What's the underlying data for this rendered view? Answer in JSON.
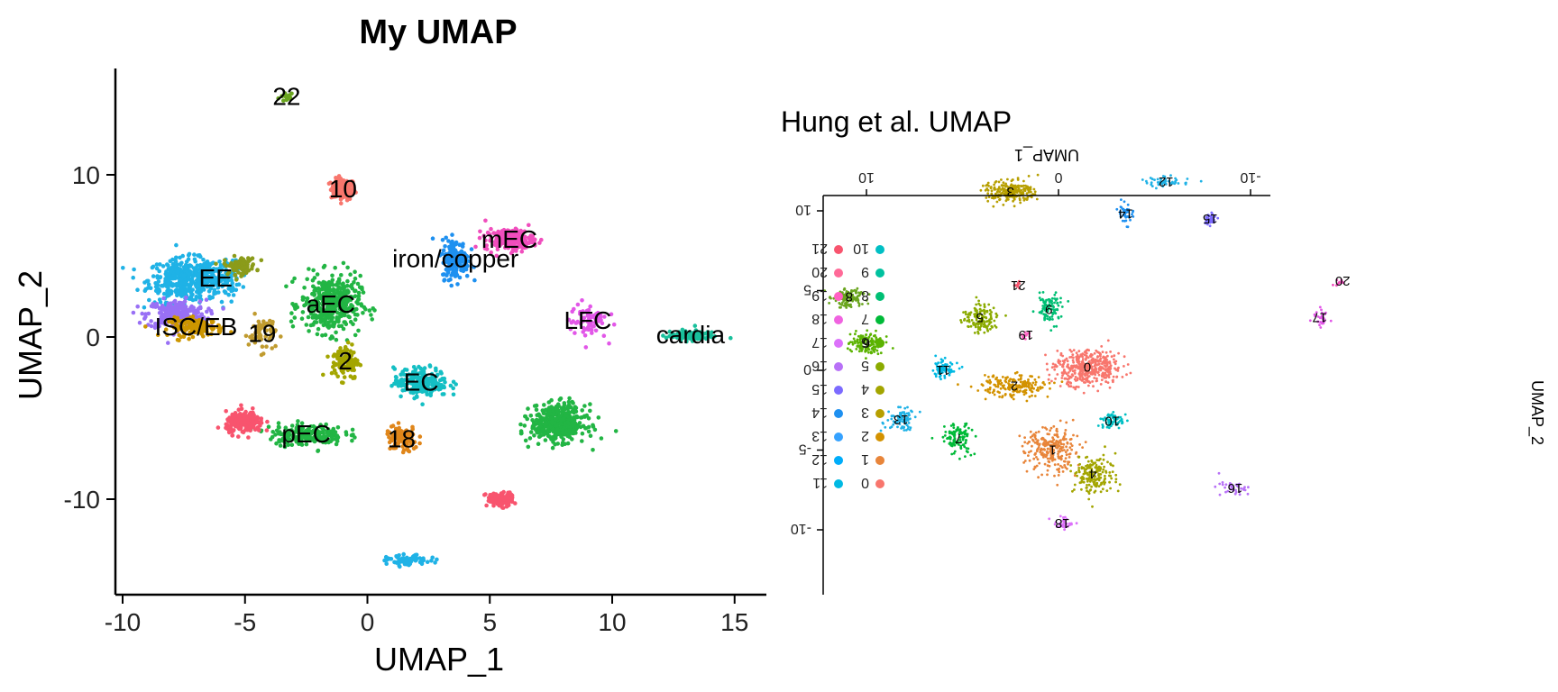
{
  "chart_data": [
    {
      "type": "scatter",
      "title": "My UMAP",
      "xlabel": "UMAP_1",
      "ylabel": "UMAP_2",
      "xlim": [
        -10.3,
        16.2
      ],
      "ylim": [
        -16,
        16.5
      ],
      "xticks": [
        -10,
        -5,
        0,
        5,
        10,
        15
      ],
      "yticks": [
        -10,
        0,
        10
      ],
      "grid": false,
      "legend": "none",
      "clusters": [
        {
          "label": "22",
          "x": -3.3,
          "y": 14.8,
          "sx": 0.3,
          "sy": 0.3,
          "n": 15,
          "color": "#6aa51f"
        },
        {
          "label": "10",
          "x": -1.0,
          "y": 9.1,
          "sx": 0.45,
          "sy": 0.6,
          "n": 110,
          "color": "#f8766d"
        },
        {
          "label": "",
          "x": -7.5,
          "y": 3.5,
          "sx": 1.3,
          "sy": 1.2,
          "n": 380,
          "color": "#1fb2e6"
        },
        {
          "label": "",
          "x": -7.8,
          "y": 1.4,
          "sx": 1.1,
          "sy": 0.8,
          "n": 260,
          "color": "#9970f5"
        },
        {
          "label": "EE",
          "x": -6.2,
          "y": 3.6,
          "sx": 0.9,
          "sy": 1.0,
          "n": 160,
          "color": "#1fb2e6"
        },
        {
          "label": "",
          "x": -5.2,
          "y": 4.4,
          "sx": 0.6,
          "sy": 0.5,
          "n": 80,
          "color": "#8b9b1a"
        },
        {
          "label": "ISC/EB",
          "x": -7.0,
          "y": 0.6,
          "sx": 1.0,
          "sy": 0.5,
          "n": 140,
          "color": "#cd9600"
        },
        {
          "label": "19",
          "x": -4.3,
          "y": 0.2,
          "sx": 0.5,
          "sy": 1.0,
          "n": 60,
          "color": "#c09b2f"
        },
        {
          "label": "aEC",
          "x": -1.5,
          "y": 2.0,
          "sx": 1.1,
          "sy": 1.6,
          "n": 420,
          "color": "#22b544"
        },
        {
          "label": "2",
          "x": -0.9,
          "y": -1.5,
          "sx": 0.5,
          "sy": 1.0,
          "n": 110,
          "color": "#a3a500"
        },
        {
          "label": "iron/copper",
          "x": 3.6,
          "y": 4.8,
          "sx": 0.5,
          "sy": 1.1,
          "n": 180,
          "color": "#1e90f0"
        },
        {
          "label": "mEC",
          "x": 5.8,
          "y": 6.0,
          "sx": 0.9,
          "sy": 0.6,
          "n": 210,
          "color": "#f04ebd"
        },
        {
          "label": "LFC",
          "x": 9.0,
          "y": 1.0,
          "sx": 0.7,
          "sy": 1.0,
          "n": 70,
          "color": "#e257e8"
        },
        {
          "label": "cardia",
          "x": 13.2,
          "y": 0.1,
          "sx": 0.9,
          "sy": 0.3,
          "n": 90,
          "color": "#19c09c"
        },
        {
          "label": "EC",
          "x": 2.2,
          "y": -2.8,
          "sx": 1.0,
          "sy": 0.8,
          "n": 200,
          "color": "#14bfc4"
        },
        {
          "label": "pEC",
          "x": -2.5,
          "y": -6.0,
          "sx": 1.4,
          "sy": 0.6,
          "n": 200,
          "color": "#22b544"
        },
        {
          "label": "",
          "x": -5.0,
          "y": -5.3,
          "sx": 0.7,
          "sy": 0.6,
          "n": 180,
          "color": "#f8546e"
        },
        {
          "label": "18",
          "x": 1.4,
          "y": -6.3,
          "sx": 0.6,
          "sy": 0.7,
          "n": 110,
          "color": "#e0861a"
        },
        {
          "label": "",
          "x": 7.8,
          "y": -5.3,
          "sx": 1.0,
          "sy": 1.0,
          "n": 450,
          "color": "#22b544"
        },
        {
          "label": "",
          "x": 5.4,
          "y": -10.0,
          "sx": 0.5,
          "sy": 0.4,
          "n": 110,
          "color": "#f8546e"
        },
        {
          "label": "",
          "x": 1.7,
          "y": -13.8,
          "sx": 0.8,
          "sy": 0.3,
          "n": 70,
          "color": "#1fb2e6"
        }
      ]
    },
    {
      "type": "scatter",
      "title": "Hung et al. UMAP",
      "xlabel": "UMAP_1",
      "ylabel": "UMAP_2",
      "rotated": "180deg",
      "xticks": [
        10,
        0,
        -10
      ],
      "yticks": [
        -10,
        -5,
        0,
        5,
        10
      ],
      "legend": "left",
      "legend_entries": [
        "0",
        "1",
        "2",
        "3",
        "4",
        "5",
        "6",
        "7",
        "8",
        "9",
        "10",
        "11",
        "12",
        "13",
        "14",
        "15",
        "16",
        "17",
        "18",
        "19",
        "20",
        "21"
      ],
      "legend_colors": [
        "#f8766d",
        "#e8853a",
        "#d39200",
        "#b79f00",
        "#a3a500",
        "#8bab00",
        "#5bb300",
        "#00ba38",
        "#00bf74",
        "#00c19f",
        "#00bfc4",
        "#00b9e3",
        "#00adfa",
        "#35a2ff",
        "#1e90f0",
        "#7c6bff",
        "#b871f7",
        "#dc71fa",
        "#f063e0",
        "#ff61c3",
        "#ff6a98",
        "#f8546e"
      ],
      "clusters": [
        {
          "label": "0",
          "x": -1.5,
          "y": 0.2,
          "sx": 1.6,
          "sy": 1.0,
          "n": 420,
          "color": "#f8766d"
        },
        {
          "label": "1",
          "x": 0.3,
          "y": -5.0,
          "sx": 1.3,
          "sy": 1.2,
          "n": 260,
          "color": "#e8853a"
        },
        {
          "label": "4",
          "x": -1.8,
          "y": -6.5,
          "sx": 1.0,
          "sy": 1.1,
          "n": 180,
          "color": "#a3a500"
        },
        {
          "label": "18",
          "x": -0.2,
          "y": -9.6,
          "sx": 0.5,
          "sy": 0.3,
          "n": 40,
          "color": "#dc71fa"
        },
        {
          "label": "10",
          "x": -2.8,
          "y": -3.2,
          "sx": 0.6,
          "sy": 0.5,
          "n": 60,
          "color": "#00bfc4"
        },
        {
          "label": "2",
          "x": 2.3,
          "y": -1.0,
          "sx": 1.5,
          "sy": 0.6,
          "n": 190,
          "color": "#d39200"
        },
        {
          "label": "11",
          "x": 6.0,
          "y": 0.0,
          "sx": 0.6,
          "sy": 0.5,
          "n": 70,
          "color": "#00b9e3"
        },
        {
          "label": "7",
          "x": 5.2,
          "y": -4.3,
          "sx": 0.7,
          "sy": 1.0,
          "n": 110,
          "color": "#00ba38"
        },
        {
          "label": "13",
          "x": 8.2,
          "y": -3.1,
          "sx": 0.8,
          "sy": 0.6,
          "n": 80,
          "color": "#1fb2e6"
        },
        {
          "label": "19",
          "x": 1.7,
          "y": 2.2,
          "sx": 0.2,
          "sy": 0.2,
          "n": 12,
          "color": "#ff61c3"
        },
        {
          "label": "5",
          "x": 4.1,
          "y": 3.3,
          "sx": 0.8,
          "sy": 0.9,
          "n": 130,
          "color": "#8bab00"
        },
        {
          "label": "9",
          "x": 0.5,
          "y": 3.8,
          "sx": 0.6,
          "sy": 0.8,
          "n": 90,
          "color": "#00bf74"
        },
        {
          "label": "21",
          "x": 2.1,
          "y": 5.3,
          "sx": 0.2,
          "sy": 0.2,
          "n": 10,
          "color": "#f8546e"
        },
        {
          "label": "6",
          "x": 10.0,
          "y": 1.7,
          "sx": 0.8,
          "sy": 0.6,
          "n": 130,
          "color": "#5bb300"
        },
        {
          "label": "8",
          "x": 10.9,
          "y": 4.6,
          "sx": 0.7,
          "sy": 0.6,
          "n": 120,
          "color": "#6aa51f"
        },
        {
          "label": "3",
          "x": 2.5,
          "y": 11.2,
          "sx": 1.1,
          "sy": 0.6,
          "n": 230,
          "color": "#b79f00"
        },
        {
          "label": "14",
          "x": -3.5,
          "y": 9.8,
          "sx": 0.3,
          "sy": 0.6,
          "n": 45,
          "color": "#1e90f0"
        },
        {
          "label": "15",
          "x": -7.9,
          "y": 9.5,
          "sx": 0.3,
          "sy": 0.4,
          "n": 40,
          "color": "#7c6bff"
        },
        {
          "label": "12",
          "x": -5.6,
          "y": 11.8,
          "sx": 1.1,
          "sy": 0.3,
          "n": 50,
          "color": "#1fb2e6"
        },
        {
          "label": "16",
          "x": -9.2,
          "y": -7.4,
          "sx": 0.8,
          "sy": 0.4,
          "n": 35,
          "color": "#b871f7"
        },
        {
          "label": "17",
          "x": -13.6,
          "y": 3.3,
          "sx": 0.4,
          "sy": 0.5,
          "n": 30,
          "color": "#e257e8"
        },
        {
          "label": "20",
          "x": -14.8,
          "y": 5.6,
          "sx": 0.4,
          "sy": 0.2,
          "n": 10,
          "color": "#f04ebd"
        }
      ]
    }
  ]
}
